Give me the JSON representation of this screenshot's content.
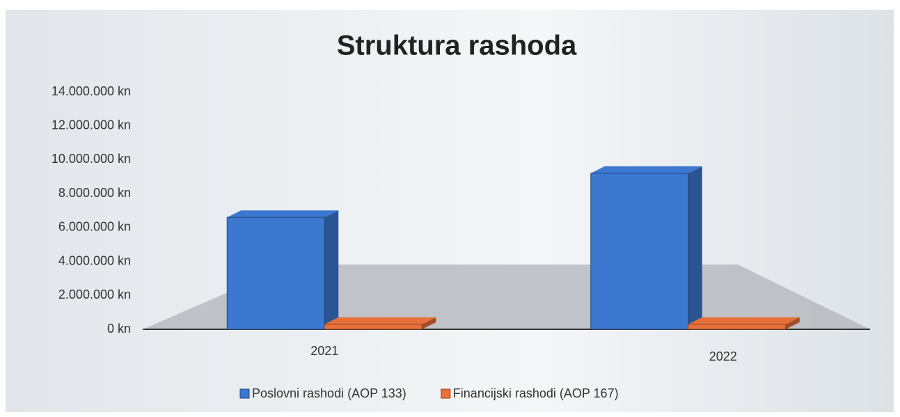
{
  "chart_data": {
    "type": "bar",
    "title": "Struktura rashoda",
    "categories": [
      "2021",
      "2022"
    ],
    "series": [
      {
        "name": "Poslovni rashodi (AOP 133)",
        "color": "#3c78d0",
        "values": [
          6600000,
          9200000
        ]
      },
      {
        "name": "Financijski rashodi (AOP 167)",
        "color": "#e8703a",
        "values": [
          300000,
          300000
        ]
      }
    ],
    "ylim": [
      0,
      14000000
    ],
    "yticks": [
      {
        "value": 0,
        "label": "0 kn"
      },
      {
        "value": 2000000,
        "label": "2.000.000 kn"
      },
      {
        "value": 4000000,
        "label": "4.000.000 kn"
      },
      {
        "value": 6000000,
        "label": "6.000.000 kn"
      },
      {
        "value": 8000000,
        "label": "8.000.000 kn"
      },
      {
        "value": 10000000,
        "label": "10.000.000 kn"
      },
      {
        "value": 12000000,
        "label": "12.000.000 kn"
      },
      {
        "value": 14000000,
        "label": "14.000.000 kn"
      }
    ],
    "legend": "bottom"
  }
}
